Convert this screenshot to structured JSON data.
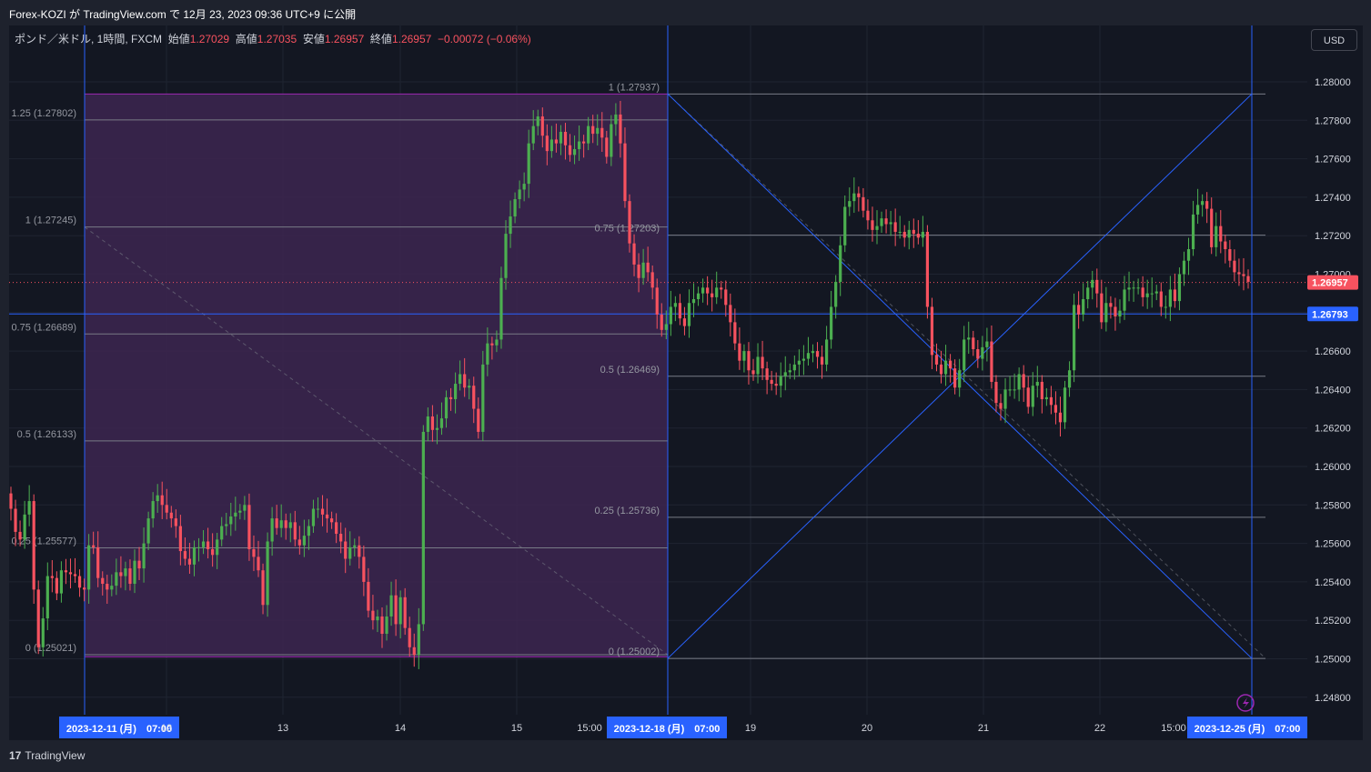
{
  "header": {
    "publish_line": "Forex-KOZI が TradingView.com で 12月 23, 2023 09:36 UTC+9 に公開"
  },
  "legend": {
    "symbol": "ポンド／米ドル, 1時間, FXCM",
    "open_label": "始値",
    "open": "1.27029",
    "high_label": "高値",
    "high": "1.27035",
    "low_label": "安値",
    "low": "1.26957",
    "close_label": "終値",
    "close": "1.26957",
    "change": "−0.00072 (−0.06%)"
  },
  "currency_button": "USD",
  "footer": {
    "logo": "17",
    "brand": "TradingView"
  },
  "colors": {
    "background": "#131722",
    "up": "#26a69a",
    "up_candle": "#4caf50",
    "down_candle": "#f7525f",
    "fib_box_fill": "#3d2650",
    "fib_box_border": "#9c27b0",
    "blue_line": "#2962ff",
    "fib_level_line": "#787b86"
  },
  "chart_data": {
    "type": "candlestick",
    "symbol": "GBPUSD",
    "timeframe": "1時間",
    "y_axis": {
      "ticks": [
        "1.28000",
        "1.27800",
        "1.27600",
        "1.27400",
        "1.27200",
        "1.27000",
        "1.26800",
        "1.26600",
        "1.26400",
        "1.26200",
        "1.26000",
        "1.25800",
        "1.25600",
        "1.25400",
        "1.25200",
        "1.25000",
        "1.24800"
      ],
      "ylim": [
        1.2475,
        1.2828
      ],
      "grid": true
    },
    "x_axis": {
      "ticks": [
        "2023-12-11 (月)　07:00",
        "12",
        "13",
        "14",
        "15",
        "15:00",
        "2023-12-18 (月)　07:00",
        "19",
        "20",
        "21",
        "22",
        "15:00",
        "2023-12-25 (月)　07:00"
      ],
      "highlighted": [
        "2023-12-11 (月)　07:00",
        "2023-12-18 (月)　07:00",
        "2023-12-25 (月)　07:00"
      ]
    },
    "current_price": 1.26957,
    "current_price_label": "1.26957",
    "horizontal_line": 1.26793,
    "horizontal_line_label": "1.26793",
    "fib_left": {
      "range": [
        "2023-12-11 (月)　07:00",
        "2023-12-18 (月)　07:00"
      ],
      "levels": [
        {
          "label": "1.25 (1.27802)",
          "value": 1.27802
        },
        {
          "label": "1 (1.27245)",
          "value": 1.27245
        },
        {
          "label": "0.75 (1.26689)",
          "value": 1.26689
        },
        {
          "label": "0.5 (1.26133)",
          "value": 1.26133
        },
        {
          "label": "0.25 (1.25577)",
          "value": 1.25577
        },
        {
          "label": "0 (1.25021)",
          "value": 1.25021
        }
      ],
      "box_top": 1.27937,
      "box_bottom": 1.2501
    },
    "fib_right": {
      "range": [
        "2023-12-18 (月)　07:00",
        "2023-12-25 (月)　07:00"
      ],
      "levels": [
        {
          "label": "1 (1.27937)",
          "value": 1.27937
        },
        {
          "label": "0.75 (1.27203)",
          "value": 1.27203
        },
        {
          "label": "0.5 (1.26469)",
          "value": 1.26469
        },
        {
          "label": "0.25 (1.25736)",
          "value": 1.25736
        },
        {
          "label": "0 (1.25002)",
          "value": 1.25002
        }
      ]
    },
    "close_series_approx": [
      1.2578,
      1.2566,
      1.2562,
      1.2575,
      1.2582,
      1.2536,
      1.2506,
      1.2521,
      1.2543,
      1.2542,
      1.2534,
      1.2546,
      1.2545,
      1.2544,
      1.2543,
      1.2537,
      1.2536,
      1.2559,
      1.2558,
      1.2542,
      1.2539,
      1.2536,
      1.2538,
      1.2545,
      1.2543,
      1.2547,
      1.2539,
      1.2551,
      1.2547,
      1.256,
      1.2573,
      1.2582,
      1.2585,
      1.258,
      1.2576,
      1.2573,
      1.2569,
      1.2556,
      1.2552,
      1.2549,
      1.2558,
      1.2558,
      1.2561,
      1.2557,
      1.2554,
      1.2562,
      1.2569,
      1.257,
      1.2574,
      1.2576,
      1.2577,
      1.258,
      1.2557,
      1.2553,
      1.2546,
      1.2528,
      1.2561,
      1.2573,
      1.2568,
      1.2572,
      1.2568,
      1.2571,
      1.2562,
      1.2559,
      1.2564,
      1.2569,
      1.2578,
      1.2578,
      1.2575,
      1.2573,
      1.2571,
      1.2565,
      1.2561,
      1.2552,
      1.2558,
      1.2559,
      1.2553,
      1.254,
      1.2525,
      1.252,
      1.2522,
      1.2513,
      1.2522,
      1.2533,
      1.2518,
      1.2532,
      1.2516,
      1.2506,
      1.2502,
      1.2518,
      1.2618,
      1.2626,
      1.2619,
      1.262,
      1.2625,
      1.2636,
      1.2635,
      1.2643,
      1.2648,
      1.2641,
      1.2642,
      1.263,
      1.2618,
      1.2653,
      1.2664,
      1.2663,
      1.2666,
      1.2698,
      1.2721,
      1.273,
      1.2739,
      1.2744,
      1.2747,
      1.2768,
      1.2777,
      1.2782,
      1.2772,
      1.2764,
      1.277,
      1.2768,
      1.2774,
      1.2767,
      1.2762,
      1.2765,
      1.2769,
      1.2768,
      1.2777,
      1.2773,
      1.2776,
      1.2771,
      1.2761,
      1.2778,
      1.2783,
      1.2768,
      1.2738,
      1.2716,
      1.2705,
      1.2698,
      1.2706,
      1.2701,
      1.2693,
      1.2679,
      1.2671,
      1.2674,
      1.2683,
      1.2685,
      1.2677,
      1.2673,
      1.2685,
      1.2687,
      1.269,
      1.2693,
      1.269,
      1.2688,
      1.2693,
      1.2692,
      1.2684,
      1.2675,
      1.2664,
      1.2655,
      1.266,
      1.265,
      1.2648,
      1.2657,
      1.2651,
      1.2645,
      1.2643,
      1.2642,
      1.2647,
      1.2649,
      1.265,
      1.2653,
      1.2655,
      1.2656,
      1.2659,
      1.266,
      1.2657,
      1.2653,
      1.2666,
      1.2683,
      1.2696,
      1.2715,
      1.2735,
      1.2738,
      1.2742,
      1.274,
      1.2733,
      1.2728,
      1.2723,
      1.2725,
      1.2729,
      1.2726,
      1.2727,
      1.2722,
      1.2722,
      1.2719,
      1.2723,
      1.2721,
      1.2719,
      1.2722,
      1.2683,
      1.2658,
      1.2653,
      1.2648,
      1.2655,
      1.2651,
      1.2641,
      1.265,
      1.2666,
      1.2667,
      1.2661,
      1.2656,
      1.2662,
      1.2665,
      1.2644,
      1.2633,
      1.263,
      1.264,
      1.264,
      1.264,
      1.2648,
      1.2641,
      1.2631,
      1.2642,
      1.2644,
      1.2635,
      1.2636,
      1.2632,
      1.2628,
      1.2623,
      1.2641,
      1.265,
      1.2684,
      1.2679,
      1.2687,
      1.2693,
      1.2697,
      1.269,
      1.2675,
      1.2685,
      1.2683,
      1.2678,
      1.2681,
      1.2692,
      1.2693,
      1.2693,
      1.2693,
      1.2688,
      1.269,
      1.269,
      1.2691,
      1.2683,
      1.2683,
      1.2692,
      1.2686,
      1.27,
      1.2707,
      1.2713,
      1.2731,
      1.2736,
      1.2738,
      1.2734,
      1.2714,
      1.2725,
      1.2717,
      1.2713,
      1.2707,
      1.2701,
      1.27,
      1.2699,
      1.2696
    ]
  }
}
